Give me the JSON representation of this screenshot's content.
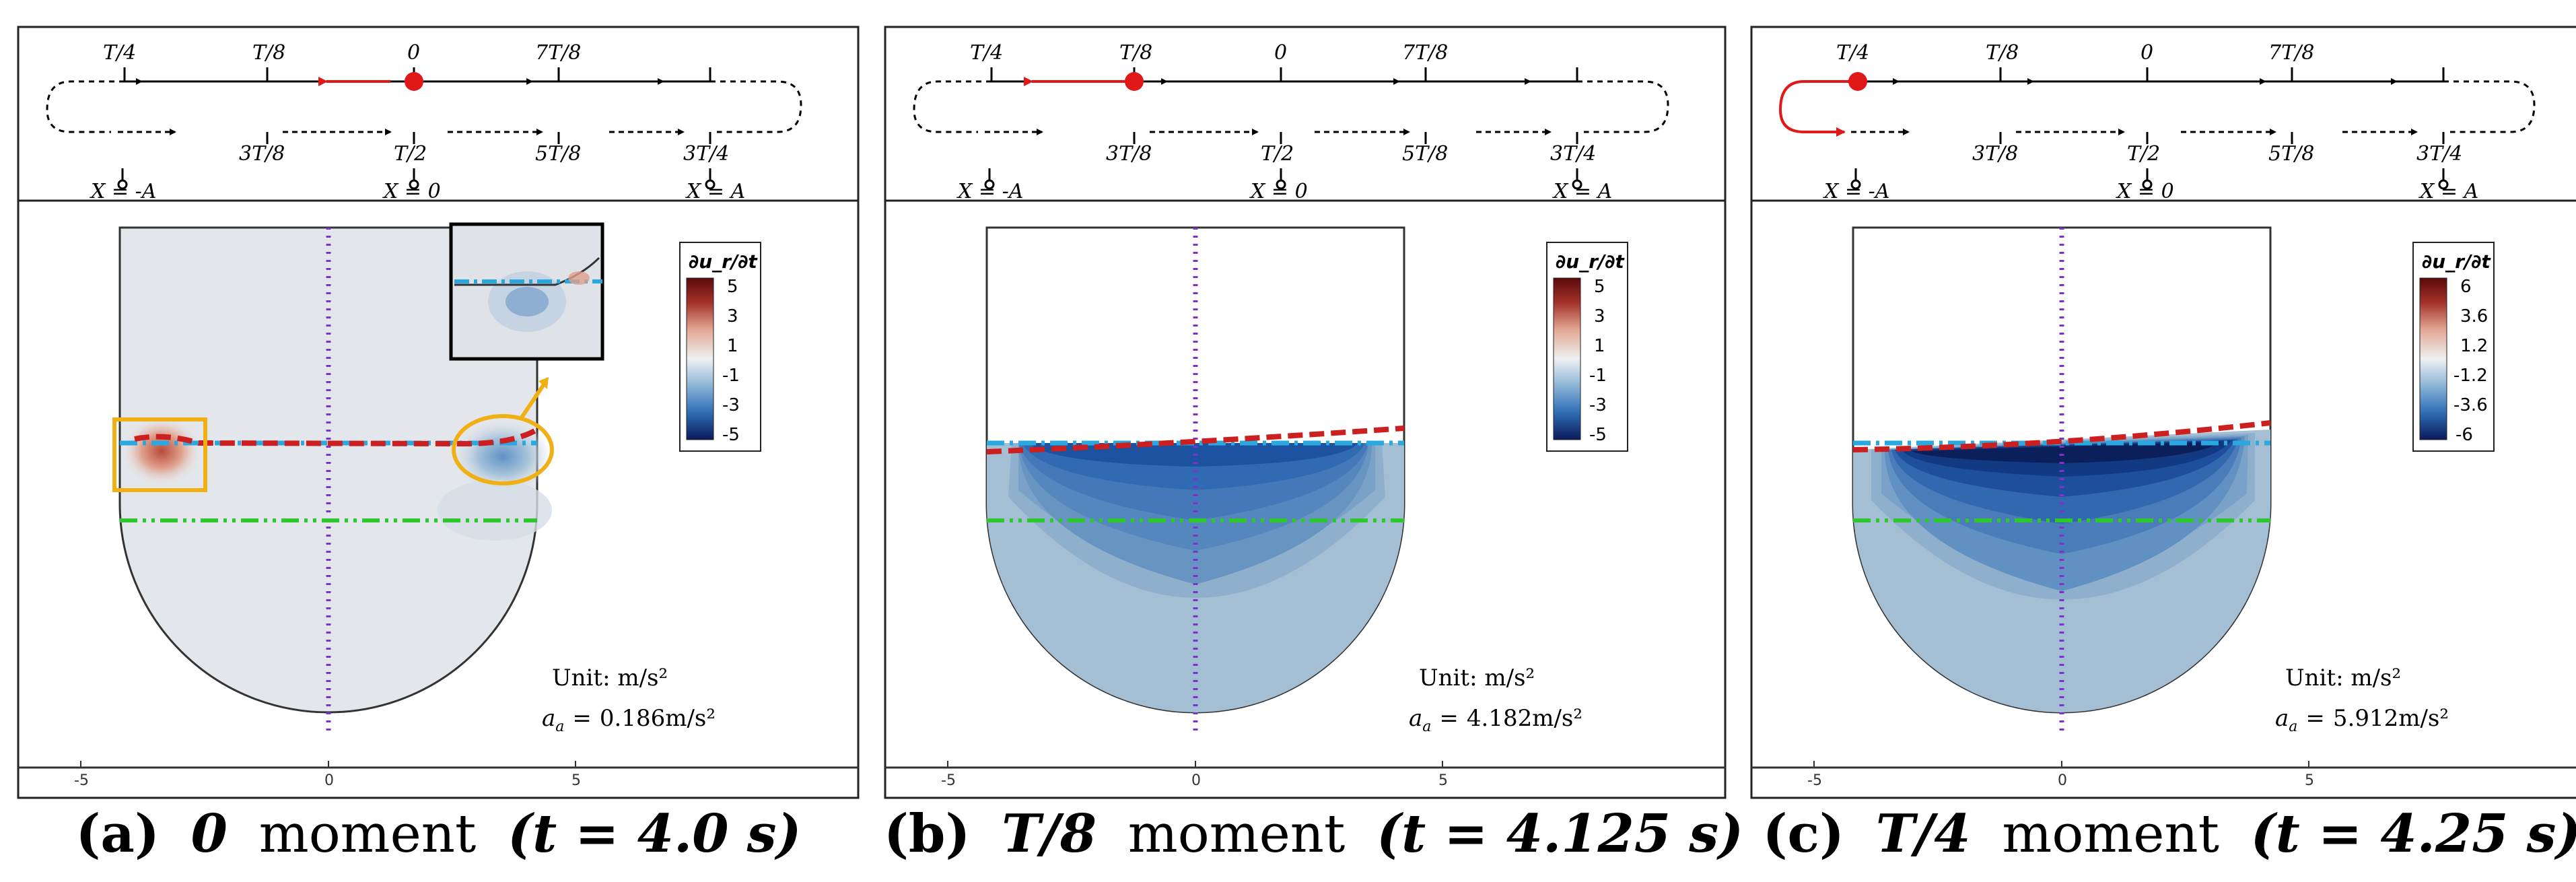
{
  "panels": [
    {
      "id": "a",
      "top_labels": [
        "T/4",
        "T/8",
        "0",
        "7T/8"
      ],
      "bottom_labels": [
        "3T/8",
        "T/2",
        "5T/8",
        "3T/4"
      ],
      "positions": [
        "X = -A",
        "X = 0",
        "X = A"
      ],
      "legend": {
        "title": "∂u_r/∂t",
        "ticks": [
          "5",
          "3",
          "1",
          "-1",
          "-3",
          "-5"
        ]
      },
      "unit_label": "Unit: m/s²",
      "aa_value": "0.186m/s²",
      "axis_ticks": [
        "-5",
        "0",
        "5"
      ],
      "caption": {
        "letter": "(a)",
        "moment": "0",
        "word": "moment",
        "time": "(t = 4.0 s)"
      }
    },
    {
      "id": "b",
      "top_labels": [
        "T/4",
        "T/8",
        "0",
        "7T/8"
      ],
      "bottom_labels": [
        "3T/8",
        "T/2",
        "5T/8",
        "3T/4"
      ],
      "positions": [
        "X = -A",
        "X = 0",
        "X = A"
      ],
      "legend": {
        "title": "∂u_r/∂t",
        "ticks": [
          "5",
          "3",
          "1",
          "-1",
          "-3",
          "-5"
        ]
      },
      "unit_label": "Unit: m/s²",
      "aa_value": "4.182m/s²",
      "axis_ticks": [
        "-5",
        "0",
        "5"
      ],
      "caption": {
        "letter": "(b)",
        "moment": "T/8",
        "word": "moment",
        "time": "(t = 4.125 s)"
      }
    },
    {
      "id": "c",
      "top_labels": [
        "T/4",
        "T/8",
        "0",
        "7T/8"
      ],
      "bottom_labels": [
        "3T/8",
        "T/2",
        "5T/8",
        "3T/4"
      ],
      "positions": [
        "X = -A",
        "X = 0",
        "X = A"
      ],
      "legend": {
        "title": "∂u_r/∂t",
        "ticks": [
          "6",
          "3.6",
          "1.2",
          "-1.2",
          "-3.6",
          "-6"
        ]
      },
      "unit_label": "Unit: m/s²",
      "aa_value": "5.912m/s²",
      "axis_ticks": [
        "-5",
        "0",
        "5"
      ],
      "caption": {
        "letter": "(c)",
        "moment": "T/4",
        "word": "moment",
        "time": "(t = 4.25 s)"
      }
    }
  ],
  "aa_symbol": "a",
  "aa_subscript": "a",
  "aa_equals": "=",
  "colors": {
    "red_dash": "#cc1f1f",
    "cyan_dashdot": "#2aa9e0",
    "green_dashdot": "#2ec82e",
    "purple_dotted": "#7a35c8",
    "orange_box": "#f0b014"
  }
}
